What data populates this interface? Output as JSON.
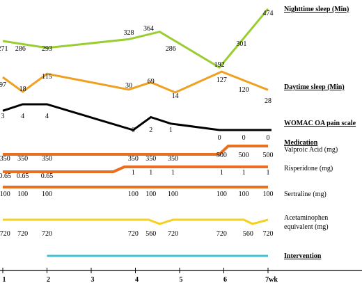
{
  "chart_data": {
    "type": "line",
    "x_axis": {
      "ticks": [
        "1",
        "2",
        "3",
        "4",
        "5",
        "6",
        "7wk"
      ],
      "range": [
        1,
        7
      ]
    },
    "series": [
      {
        "name": "Nighttime sleep (Min)",
        "color": "#9acd32",
        "x": [
          1,
          2,
          3.85,
          4.55,
          5.9,
          7
        ],
        "values": [
          271,
          286,
          328,
          364,
          192,
          474
        ],
        "labels": [
          {
            "x": 1,
            "text": "271"
          },
          {
            "x": 1.4,
            "text": "286"
          },
          {
            "x": 2,
            "text": "293"
          },
          {
            "x": 3.85,
            "text": "328"
          },
          {
            "x": 4.3,
            "text": "364"
          },
          {
            "x": 4.8,
            "text": "286"
          },
          {
            "x": 5.9,
            "text": "192"
          },
          {
            "x": 6.4,
            "text": "301"
          },
          {
            "x": 7,
            "text": "474"
          }
        ]
      },
      {
        "name": "Daytime sleep (Min)",
        "color": "#f0a020",
        "x": [
          1,
          1.45,
          2,
          3.85,
          4.35,
          4.9,
          5.95,
          7
        ],
        "values": [
          97,
          18,
          115,
          30,
          69,
          14,
          127,
          28
        ],
        "labels": [
          {
            "x": 1,
            "text": "97"
          },
          {
            "x": 1.45,
            "text": "18"
          },
          {
            "x": 2,
            "text": "115"
          },
          {
            "x": 3.85,
            "text": "30"
          },
          {
            "x": 4.35,
            "text": "69"
          },
          {
            "x": 4.9,
            "text": "14"
          },
          {
            "x": 5.95,
            "text": "127"
          },
          {
            "x": 6.45,
            "text": "120"
          },
          {
            "x": 7,
            "text": "28"
          }
        ]
      },
      {
        "name": "WOMAC OA pain scale",
        "color": "#000000",
        "x": [
          1,
          1.45,
          2,
          3.95,
          4.35,
          4.8,
          5.9,
          6.45,
          7
        ],
        "values": [
          3,
          4,
          4,
          0,
          2,
          1,
          0,
          0,
          0
        ],
        "labels": [
          {
            "x": 1,
            "text": "3"
          },
          {
            "x": 1.45,
            "text": "4"
          },
          {
            "x": 2,
            "text": "4"
          },
          {
            "x": 3.95,
            "text": "0"
          },
          {
            "x": 4.35,
            "text": "2"
          },
          {
            "x": 4.8,
            "text": "1"
          },
          {
            "x": 5.9,
            "text": "0"
          },
          {
            "x": 6.45,
            "text": "0"
          },
          {
            "x": 7,
            "text": "0"
          }
        ]
      }
    ],
    "medication_heading": "Medication",
    "medications": [
      {
        "name": "Valproic Acid (mg)",
        "color": "#e87020",
        "segments": [
          [
            1,
            5.9,
            350
          ],
          [
            6.1,
            7,
            500
          ]
        ],
        "labels": [
          {
            "x": 1.05,
            "text": "350"
          },
          {
            "x": 1.45,
            "text": "350"
          },
          {
            "x": 2,
            "text": "350"
          },
          {
            "x": 3.95,
            "text": "350"
          },
          {
            "x": 4.35,
            "text": "350"
          },
          {
            "x": 4.85,
            "text": "350"
          },
          {
            "x": 5.95,
            "text": "500"
          },
          {
            "x": 6.45,
            "text": "500"
          },
          {
            "x": 7,
            "text": "500"
          }
        ]
      },
      {
        "name": "Risperidone (mg)",
        "color": "#e87020",
        "segments": [
          [
            1,
            3.5,
            0.65
          ],
          [
            3.75,
            7,
            1
          ]
        ],
        "labels": [
          {
            "x": 1.05,
            "text": "0.65"
          },
          {
            "x": 1.45,
            "text": "0.65"
          },
          {
            "x": 2,
            "text": "0.65"
          },
          {
            "x": 3.95,
            "text": "1"
          },
          {
            "x": 4.35,
            "text": "1"
          },
          {
            "x": 4.85,
            "text": "1"
          },
          {
            "x": 5.95,
            "text": "1"
          },
          {
            "x": 6.45,
            "text": "1"
          },
          {
            "x": 7,
            "text": "1"
          }
        ]
      },
      {
        "name": "Sertraline (mg)",
        "color": "#e87020",
        "segments": [
          [
            1,
            7,
            100
          ]
        ],
        "labels": [
          {
            "x": 1.05,
            "text": "100"
          },
          {
            "x": 1.45,
            "text": "100"
          },
          {
            "x": 2,
            "text": "100"
          },
          {
            "x": 3.95,
            "text": "100"
          },
          {
            "x": 4.35,
            "text": "100"
          },
          {
            "x": 4.85,
            "text": "100"
          },
          {
            "x": 5.95,
            "text": "100"
          },
          {
            "x": 6.45,
            "text": "100"
          },
          {
            "x": 7,
            "text": "100"
          }
        ]
      },
      {
        "name_lines": [
          "Acetaminophen",
          "equivalent (mg)"
        ],
        "color": "#f5d020",
        "x": [
          1,
          4.3,
          4.55,
          4.85,
          6.45,
          6.65,
          7
        ],
        "values": [
          720,
          720,
          560,
          720,
          720,
          560,
          720
        ],
        "labels": [
          {
            "x": 1.05,
            "text": "720"
          },
          {
            "x": 1.45,
            "text": "720"
          },
          {
            "x": 2,
            "text": "720"
          },
          {
            "x": 3.95,
            "text": "720"
          },
          {
            "x": 4.35,
            "text": "560"
          },
          {
            "x": 4.85,
            "text": "720"
          },
          {
            "x": 5.95,
            "text": "720"
          },
          {
            "x": 6.55,
            "text": "560"
          },
          {
            "x": 7,
            "text": "720"
          }
        ]
      }
    ],
    "intervention": {
      "name": "Intervention",
      "color": "#40c0d0",
      "range": [
        2,
        7
      ]
    }
  }
}
